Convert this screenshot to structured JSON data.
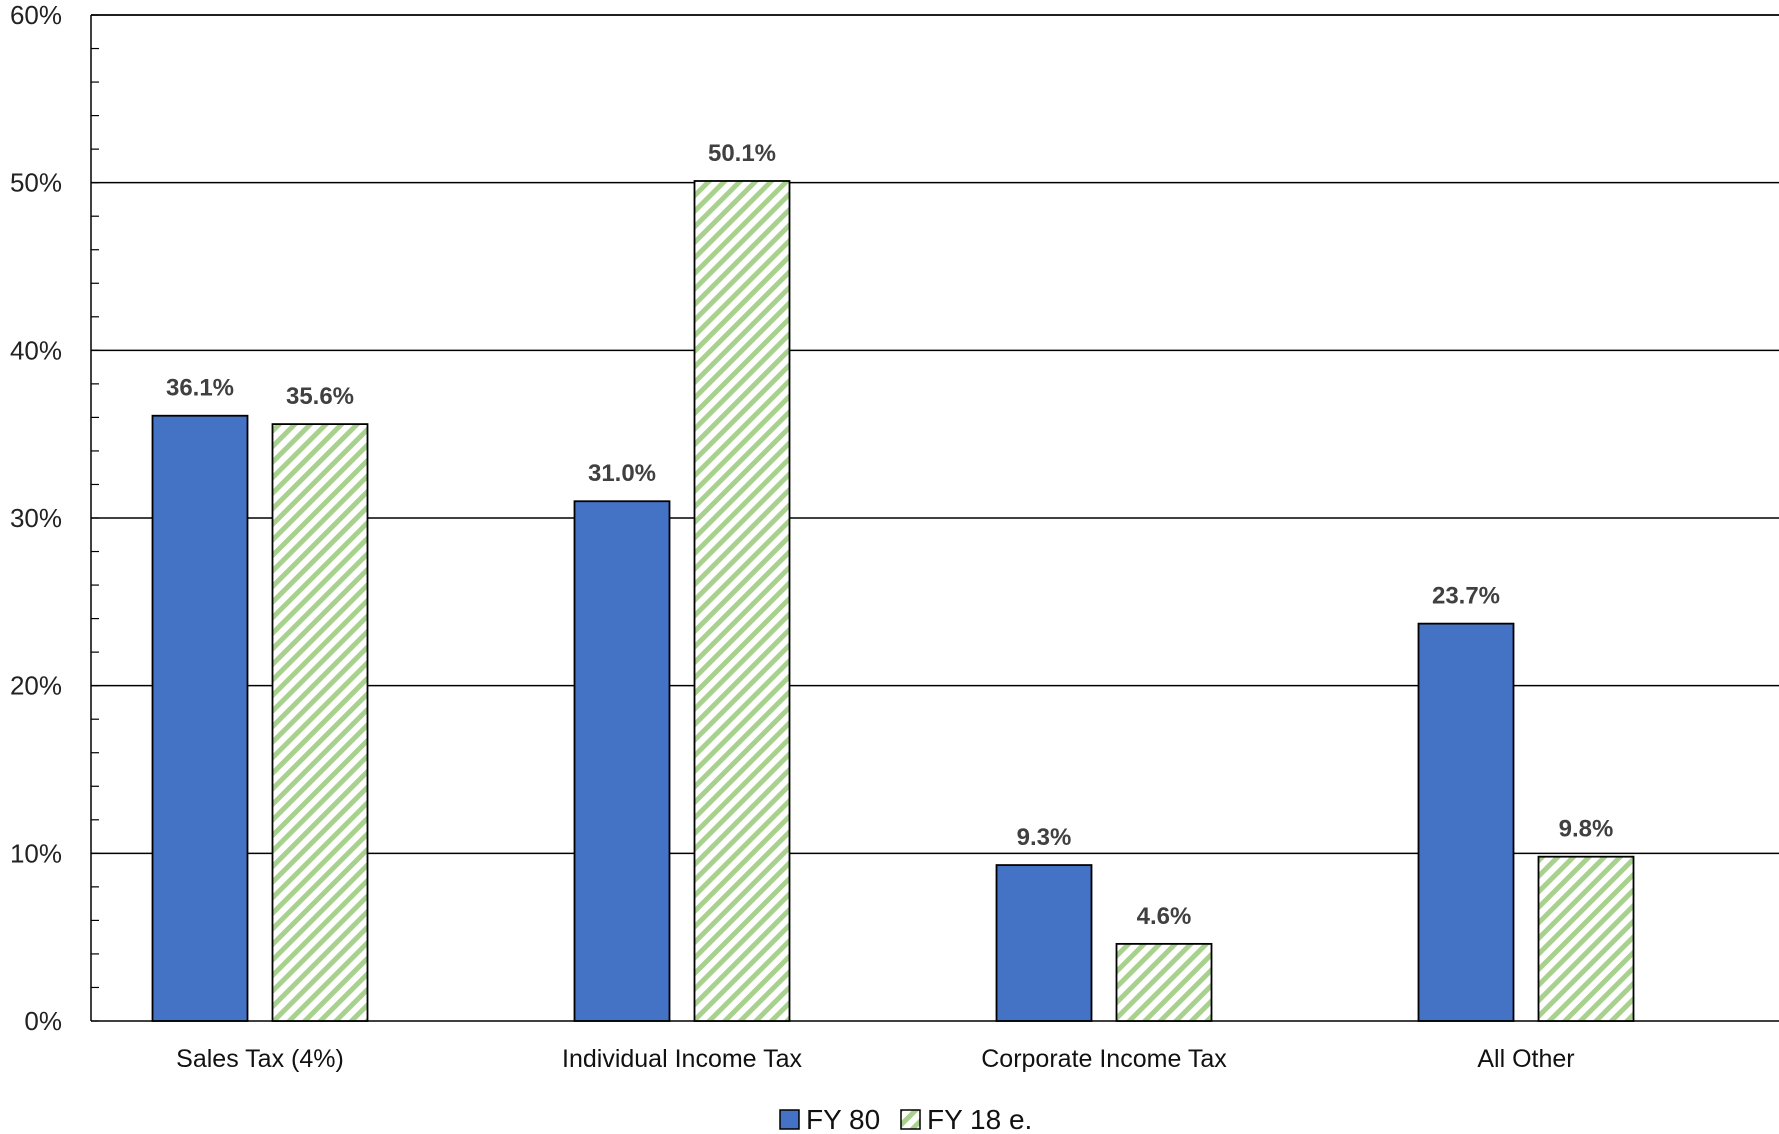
{
  "chart_data": {
    "type": "bar",
    "categories": [
      "Sales Tax (4%)",
      "Individual Income Tax",
      "Corporate Income Tax",
      "All Other"
    ],
    "series": [
      {
        "name": "FY 80",
        "values": [
          36.1,
          31.0,
          9.3,
          23.7
        ],
        "labels": [
          "36.1%",
          "31.0%",
          "9.3%",
          "23.7%"
        ],
        "color": "#4472C4",
        "pattern": "solid"
      },
      {
        "name": "FY 18 e.",
        "values": [
          35.6,
          50.1,
          4.6,
          9.8
        ],
        "labels": [
          "35.6%",
          "50.1%",
          "4.6%",
          "9.8%"
        ],
        "color": "#A9D18E",
        "pattern": "diagonal-stripes"
      }
    ],
    "ylim": [
      0,
      60
    ],
    "yticks": [
      0,
      10,
      20,
      30,
      40,
      50,
      60
    ],
    "ytick_labels": [
      "0%",
      "10%",
      "20%",
      "30%",
      "40%",
      "50%",
      "60%"
    ],
    "grid": true,
    "legend_position": "bottom-center",
    "xlabel": "",
    "ylabel": ""
  }
}
